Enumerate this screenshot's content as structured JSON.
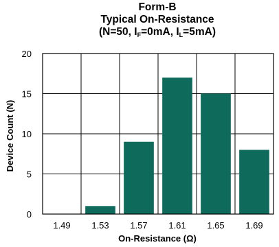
{
  "chart_data": {
    "type": "bar",
    "title": "Form-B",
    "subtitle": "Typical On-Resistance",
    "conditions": {
      "prefix": "(N=50, I",
      "if_sub": "F",
      "if_value": "=0mA, I",
      "il_sub": "L",
      "il_value": "=5mA)"
    },
    "xlabel": "On-Resistance (Ω)",
    "ylabel": "Device Count (N)",
    "categories": [
      "1.49",
      "1.53",
      "1.57",
      "1.61",
      "1.65",
      "1.69"
    ],
    "values": [
      0,
      1,
      9,
      17,
      15,
      8
    ],
    "ylim": [
      0,
      20
    ],
    "yticks": [
      0,
      5,
      10,
      15,
      20
    ],
    "grid": true,
    "bar_color": "#0e6b5c"
  }
}
